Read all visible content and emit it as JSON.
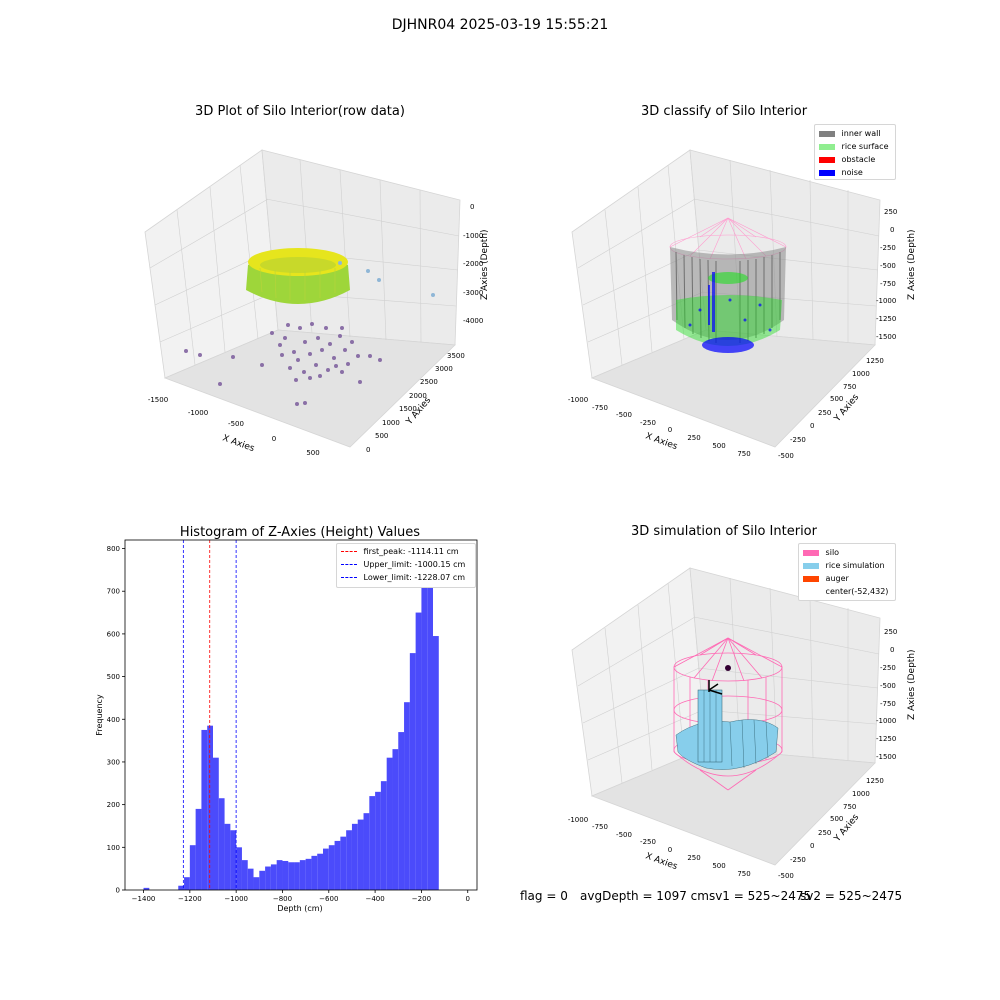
{
  "suptitle": "DJHNR04 2025-03-19 15:55:21",
  "plots": {
    "raw": {
      "title": "3D Plot of Silo Interior(row data)",
      "xlabel": "X Axies",
      "ylabel": "Y Axies",
      "zlabel": "Z Axies (Depth)",
      "xticks": [
        "-1500",
        "-1000",
        "-500",
        "0",
        "500"
      ],
      "yticks": [
        "0",
        "500",
        "1000",
        "1500",
        "2000",
        "2500",
        "3000",
        "3500"
      ],
      "zticks": [
        "0",
        "-1000",
        "-2000",
        "-3000",
        "-4000"
      ]
    },
    "classify": {
      "title": "3D classify of Silo Interior",
      "xlabel": "X Axies",
      "ylabel": "Y Axies",
      "zlabel": "Z Axies (Depth)",
      "xticks": [
        "-1000",
        "-750",
        "-500",
        "-250",
        "0",
        "250",
        "500",
        "750"
      ],
      "yticks": [
        "-500",
        "-250",
        "0",
        "250",
        "500",
        "750",
        "1000",
        "1250"
      ],
      "zticks": [
        "250",
        "0",
        "-250",
        "-500",
        "-750",
        "-1000",
        "-1250",
        "-1500"
      ],
      "legend": [
        {
          "label": "inner wall",
          "color": "#808080"
        },
        {
          "label": "rice surface",
          "color": "#90ee90"
        },
        {
          "label": "obstacle",
          "color": "#ff0000"
        },
        {
          "label": "noise",
          "color": "#0000ff"
        }
      ]
    },
    "simulation": {
      "title": "3D simulation of Silo Interior",
      "xlabel": "X Axies",
      "ylabel": "Y Axies",
      "zlabel": "Z Axies (Depth)",
      "xticks": [
        "-1000",
        "-750",
        "-500",
        "-250",
        "0",
        "250",
        "500",
        "750"
      ],
      "yticks": [
        "-500",
        "-250",
        "0",
        "250",
        "500",
        "750",
        "1000",
        "1250"
      ],
      "zticks": [
        "250",
        "0",
        "-250",
        "-500",
        "-750",
        "-1000",
        "-1250",
        "-1500"
      ],
      "legend": [
        {
          "label": "silo",
          "color": "#ff69b4"
        },
        {
          "label": "rice simulation",
          "color": "#87ceeb"
        },
        {
          "label": "auger",
          "color": "#ff4500"
        },
        {
          "label": "center(-52,432)",
          "color": ""
        }
      ]
    }
  },
  "footer": {
    "flag": "flag = 0",
    "avg": "avgDepth = 1097 cmsv1 = 525~2475",
    "sv2": "sv2 = 525~2475"
  },
  "chart_data": [
    {
      "type": "bar",
      "title": "Histogram of Z-Axies (Height) Values",
      "xlabel": "Depth (cm)",
      "ylabel": "Frequency",
      "xlim": [
        -1480,
        40
      ],
      "ylim": [
        0,
        820
      ],
      "xticks": [
        -1400,
        -1200,
        -1000,
        -800,
        -600,
        -400,
        -200,
        0
      ],
      "yticks": [
        0,
        100,
        200,
        300,
        400,
        500,
        600,
        700,
        800
      ],
      "bin_width": 25,
      "color": "#4b4bfb",
      "bins": [
        {
          "x": -1400,
          "count": 5
        },
        {
          "x": -1250,
          "count": 10
        },
        {
          "x": -1225,
          "count": 30
        },
        {
          "x": -1200,
          "count": 105
        },
        {
          "x": -1175,
          "count": 190
        },
        {
          "x": -1150,
          "count": 375
        },
        {
          "x": -1125,
          "count": 385
        },
        {
          "x": -1100,
          "count": 310
        },
        {
          "x": -1075,
          "count": 215
        },
        {
          "x": -1050,
          "count": 155
        },
        {
          "x": -1025,
          "count": 140
        },
        {
          "x": -1000,
          "count": 100
        },
        {
          "x": -975,
          "count": 70
        },
        {
          "x": -950,
          "count": 50
        },
        {
          "x": -925,
          "count": 30
        },
        {
          "x": -900,
          "count": 45
        },
        {
          "x": -875,
          "count": 55
        },
        {
          "x": -850,
          "count": 60
        },
        {
          "x": -825,
          "count": 70
        },
        {
          "x": -800,
          "count": 68
        },
        {
          "x": -775,
          "count": 65
        },
        {
          "x": -750,
          "count": 65
        },
        {
          "x": -725,
          "count": 70
        },
        {
          "x": -700,
          "count": 73
        },
        {
          "x": -675,
          "count": 80
        },
        {
          "x": -650,
          "count": 85
        },
        {
          "x": -625,
          "count": 97
        },
        {
          "x": -600,
          "count": 105
        },
        {
          "x": -575,
          "count": 115
        },
        {
          "x": -550,
          "count": 125
        },
        {
          "x": -525,
          "count": 140
        },
        {
          "x": -500,
          "count": 155
        },
        {
          "x": -475,
          "count": 165
        },
        {
          "x": -450,
          "count": 180
        },
        {
          "x": -425,
          "count": 220
        },
        {
          "x": -400,
          "count": 230
        },
        {
          "x": -375,
          "count": 255
        },
        {
          "x": -350,
          "count": 310
        },
        {
          "x": -325,
          "count": 330
        },
        {
          "x": -300,
          "count": 370
        },
        {
          "x": -275,
          "count": 440
        },
        {
          "x": -250,
          "count": 555
        },
        {
          "x": -225,
          "count": 650
        },
        {
          "x": -200,
          "count": 720
        },
        {
          "x": -175,
          "count": 785
        },
        {
          "x": -150,
          "count": 595
        }
      ],
      "vlines": [
        {
          "label": "first_peak: -1114.11 cm",
          "x": -1114.11,
          "color": "#ff0000"
        },
        {
          "label": "Upper_limit: -1000.15 cm",
          "x": -1000.15,
          "color": "#0000ff"
        },
        {
          "label": "Lower_limit: -1228.07 cm",
          "x": -1228.07,
          "color": "#0000ff"
        }
      ],
      "legend_position": "top-right"
    }
  ]
}
